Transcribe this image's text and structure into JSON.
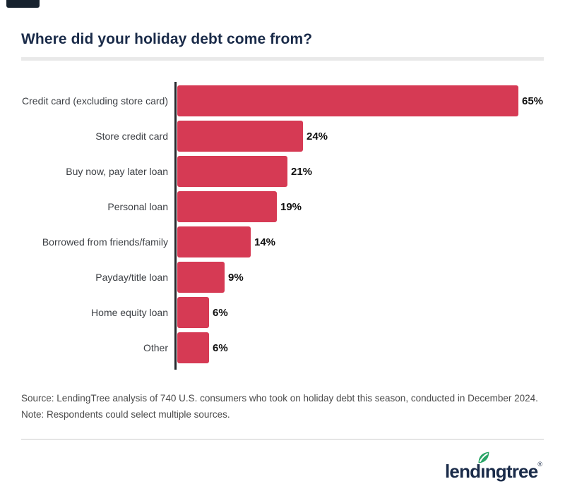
{
  "page": {
    "title": "Where did your holiday debt come from?",
    "source_note": "Source: LendingTree analysis of 740 U.S. consumers who took on holiday debt this season, conducted in December 2024. Note: Respondents could select multiple sources."
  },
  "chart_data": {
    "type": "bar",
    "orientation": "horizontal",
    "title": "Where did your holiday debt come from?",
    "categories": [
      "Credit card (excluding store card)",
      "Store credit card",
      "Buy now, pay later loan",
      "Personal loan",
      "Borrowed from friends/family",
      "Payday/title loan",
      "Home equity loan",
      "Other"
    ],
    "values": [
      65,
      24,
      21,
      19,
      14,
      9,
      6,
      6
    ],
    "value_suffix": "%",
    "xlim": [
      0,
      70
    ],
    "grid": false,
    "legend": false,
    "bar_color": "#d63a54",
    "axis_color": "#25282c",
    "label_color": "#3d4045",
    "value_label_color": "#101010"
  },
  "logo": {
    "full": "lendingtree",
    "pre": "lend",
    "i": "ı",
    "post": "ngtree",
    "mark": "®",
    "navy": "#1a2b49",
    "leaf_color": "#2aa567"
  }
}
